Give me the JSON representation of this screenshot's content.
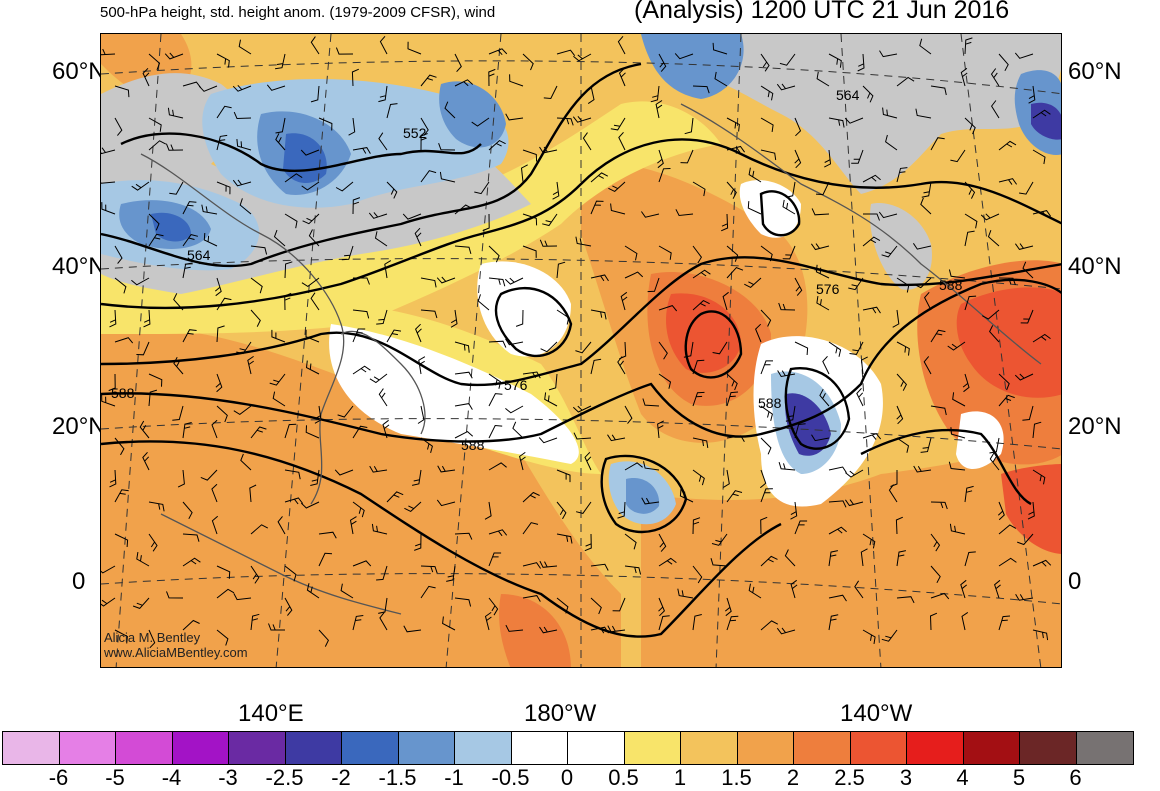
{
  "header": {
    "subtitle": "500-hPa height, std. height anom. (1979-2009 CFSR), wind",
    "title": "(Analysis) 1200 UTC 21 Jun 2016"
  },
  "axes": {
    "lat_left": [
      "60°N",
      "40°N",
      "20°N",
      "0"
    ],
    "lat_right": [
      "60°N",
      "40°N",
      "20°N",
      "0"
    ],
    "lon_bottom": [
      "140°E",
      "180°W",
      "140°W"
    ]
  },
  "contour_labels": [
    "552",
    "564",
    "564",
    "576",
    "576",
    "588",
    "588",
    "588",
    "588"
  ],
  "credit": {
    "line1": "Alicia M. Bentley",
    "line2": "www.AliciaMBentley.com"
  },
  "colorbar": {
    "colors": [
      "#e9b6e8",
      "#e57fe6",
      "#d34bd6",
      "#a313c6",
      "#6a2aa3",
      "#3e3aa3",
      "#3a68bd",
      "#6795cd",
      "#a6c8e4",
      "#ffffff",
      "#ffffff",
      "#f8e46a",
      "#f3c35c",
      "#f1a24b",
      "#ee7e3d",
      "#ec5532",
      "#e61e1c",
      "#a30f13",
      "#6b2626",
      "#777272"
    ],
    "labels": [
      "-6",
      "-5",
      "-4",
      "-3",
      "-2.5",
      "-2",
      "-1.5",
      "-1",
      "-0.5",
      "0",
      "0.5",
      "1",
      "1.5",
      "2",
      "2.5",
      "3",
      "4",
      "5",
      "6"
    ]
  },
  "colors": {
    "land": "#c8c8c8",
    "coast": "#555555"
  }
}
